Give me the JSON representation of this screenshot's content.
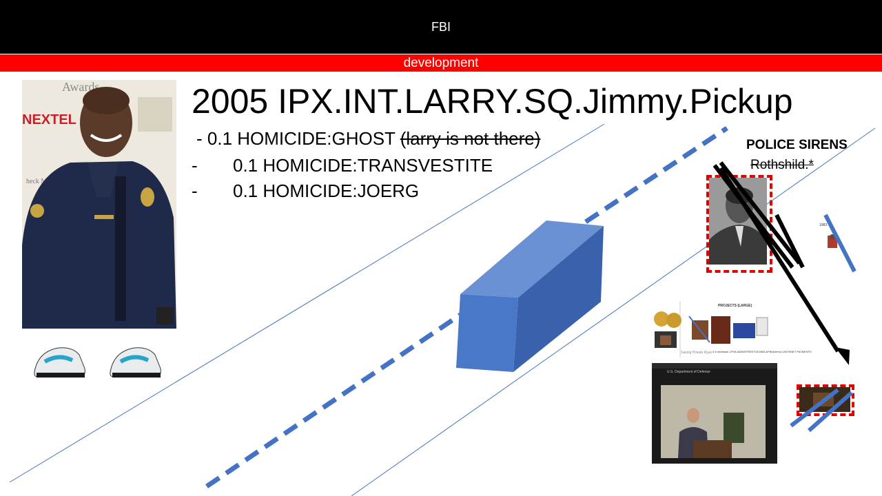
{
  "header": {
    "title": "FBI"
  },
  "subheader": {
    "label": "development"
  },
  "main": {
    "title": "2005 IPX.INT.LARRY.SQ.Jimmy.Pickup",
    "lines": [
      {
        "prefix": "- 0.1 HOMICIDE:GHOST",
        "struck": "(larry is not there)"
      },
      {
        "dash": "-",
        "text": "0.1 HOMICIDE:TRANSVESTITE"
      },
      {
        "dash": "-",
        "text": "0.1 HOMICIDE:JOERG"
      }
    ]
  },
  "right": {
    "sirens": "POLICE SIRENS",
    "rothshild": "Rothshild.*"
  },
  "photo_left": {
    "sign_awards": "Awards",
    "sign_nextel": "NEXTEL",
    "sign_checkmate": "heck Mate"
  },
  "thumb_projects": {
    "title": "PROJECTS (LARGE)",
    "footer": "0-5 mb/blank CPVA.MAINSTREET.DIONELAPIE(brimm) UNITENET PAYMENTS",
    "subcaption": "Saving Private Ryan"
  },
  "thumb_small": {
    "label": "1983"
  },
  "video_frame": {
    "banner": "U.S. Department of Defense"
  },
  "colors": {
    "header_bg": "#000000",
    "subheader_bg": "#ff0000",
    "shape_blue": "#4472c4",
    "box_front": "#4a78c8",
    "box_top": "#6a91d4",
    "box_side": "#3a62ac",
    "dash_red": "#e00000"
  }
}
